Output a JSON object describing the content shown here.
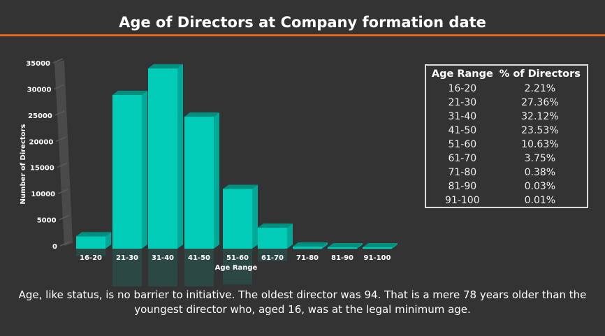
{
  "title": "Age of Directors at Company formation date",
  "caption": "Age, like status, is no barrier to initiative. The oldest director was 94. That is a mere 78 years older than the youngest director who, aged 16, was at the legal minimum age.",
  "table": {
    "headers": [
      "Age Range",
      "% of Directors"
    ],
    "rows": [
      [
        "16-20",
        "2.21%"
      ],
      [
        "21-30",
        "27.36%"
      ],
      [
        "31-40",
        "32.12%"
      ],
      [
        "41-50",
        "23.53%"
      ],
      [
        "51-60",
        "10.63%"
      ],
      [
        "61-70",
        "3.75%"
      ],
      [
        "71-80",
        "0.38%"
      ],
      [
        "81-90",
        "0.03%"
      ],
      [
        "91-100",
        "0.01%"
      ]
    ]
  },
  "chart_data": {
    "type": "bar",
    "title": "",
    "xlabel": "Age Range",
    "ylabel": "Number of Directors",
    "categories": [
      "16-20",
      "21-30",
      "31-40",
      "41-50",
      "51-60",
      "61-70",
      "71-80",
      "81-90",
      "91-100"
    ],
    "values": [
      2370,
      29400,
      34500,
      25270,
      11420,
      4030,
      410,
      30,
      10
    ],
    "ylim": [
      0,
      35000
    ],
    "yticks": [
      "0",
      "5000",
      "10000",
      "15000",
      "20000",
      "25000",
      "30000",
      "35000"
    ],
    "colors": {
      "front": "#00ccb8",
      "top": "#009080",
      "side": "#00a898",
      "reflection": "#2a4a46"
    }
  }
}
